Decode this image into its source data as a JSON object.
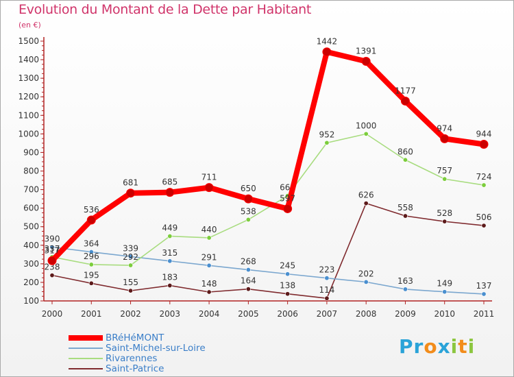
{
  "header": {
    "title": "Evolution du Montant de la Dette par Habitant",
    "subtitle": "(en €)"
  },
  "brand": {
    "logo_parts": [
      {
        "text": "Pr",
        "color": "#2aa3d8"
      },
      {
        "text": "o",
        "color": "#f28c1b"
      },
      {
        "text": "x",
        "color": "#2aa3d8"
      },
      {
        "text": "i",
        "color": "#8cc63f"
      },
      {
        "text": "t",
        "color": "#f28c1b"
      },
      {
        "text": "i",
        "color": "#8cc63f"
      }
    ]
  },
  "chart_data": {
    "type": "line",
    "title": "Evolution du Montant de la Dette par Habitant",
    "subtitle": "(en €)",
    "xlabel": "",
    "ylabel": "",
    "ylim": [
      100,
      1500
    ],
    "yticks": [
      100,
      200,
      300,
      400,
      500,
      600,
      700,
      800,
      900,
      1000,
      1100,
      1200,
      1300,
      1400,
      1500
    ],
    "grid": false,
    "legend_position": "bottom-left",
    "categories": [
      "2000",
      "2001",
      "2002",
      "2003",
      "2004",
      "2005",
      "2006",
      "2007",
      "2008",
      "2009",
      "2010",
      "2011"
    ],
    "series": [
      {
        "name": "Saint-Patrice",
        "color": "#7f2a2e",
        "marker": "#5c1a1a",
        "values": [
          238,
          195,
          155,
          183,
          148,
          164,
          138,
          114,
          626,
          558,
          528,
          506
        ]
      },
      {
        "name": "Saint-Michel-sur-Loire",
        "color": "#7ba7cf",
        "marker": "#4a8fcf",
        "values": [
          390,
          364,
          339,
          315,
          291,
          268,
          245,
          223,
          202,
          163,
          149,
          137
        ]
      },
      {
        "name": "Rivarennes",
        "color": "#a8dc7f",
        "marker": "#7ccd3c",
        "values": [
          337,
          296,
          292,
          449,
          440,
          538,
          667,
          952,
          1000,
          860,
          757,
          724
        ]
      },
      {
        "name": "BRéHéMONT",
        "color": "#ff0000",
        "marker": "#cc0000",
        "values": [
          317,
          536,
          681,
          685,
          711,
          650,
          597,
          1442,
          1391,
          1177,
          974,
          944
        ]
      }
    ],
    "legend_order": [
      "BRéHéMONT",
      "Saint-Michel-sur-Loire",
      "Rivarennes",
      "Saint-Patrice"
    ]
  }
}
